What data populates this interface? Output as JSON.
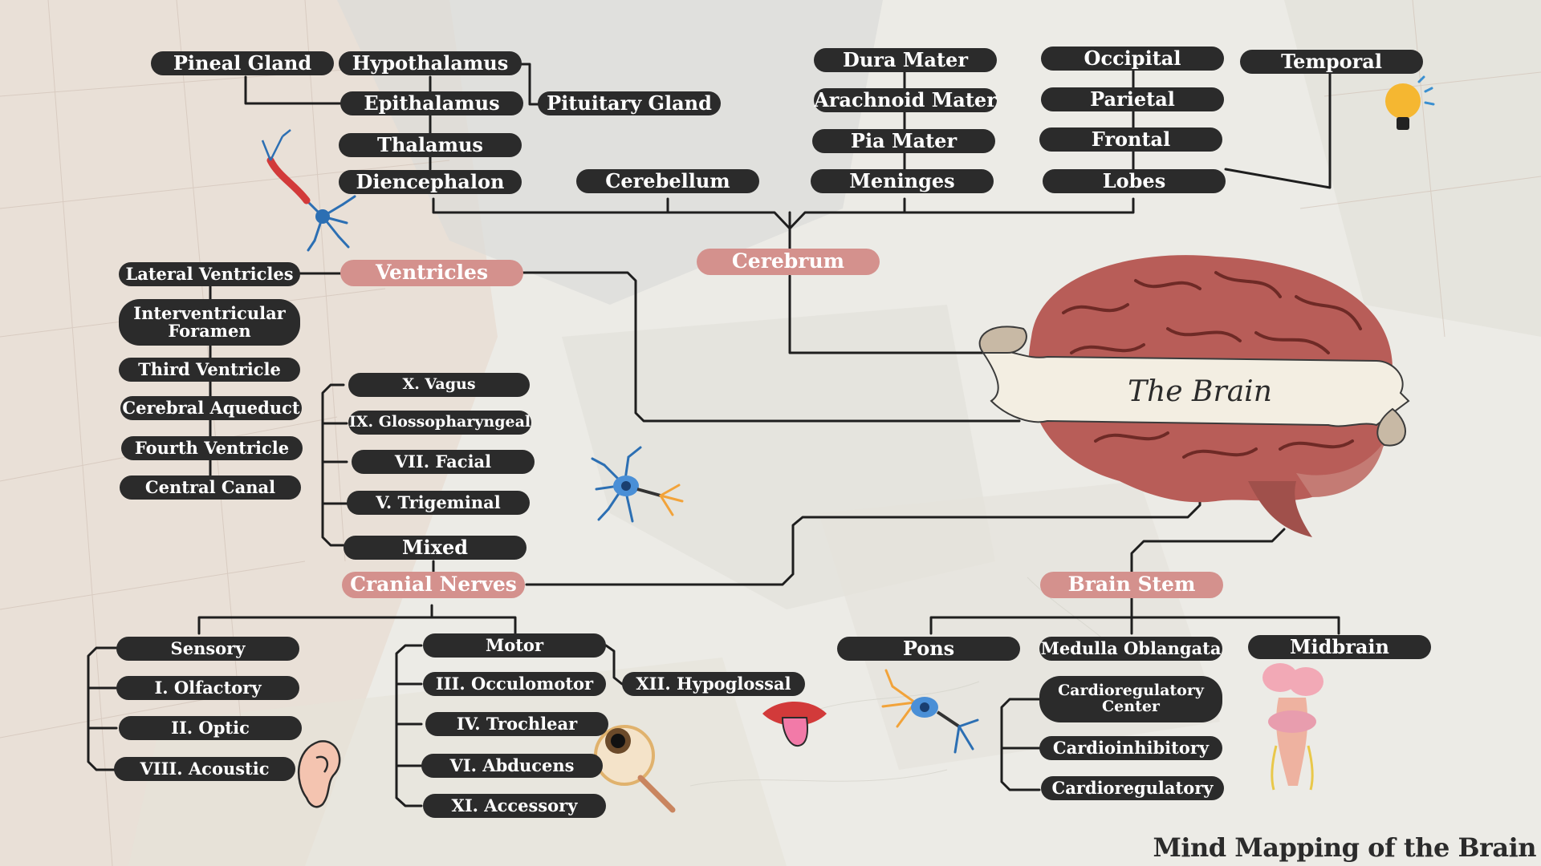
{
  "title": "The Brain",
  "footer": "Mind Mapping of the Brain",
  "colors": {
    "node": "#2b2b2b",
    "hub": "#d4918d",
    "text": "#ffffff",
    "line": "#1e1e1e"
  },
  "nodes": {
    "cerebrum": "Cerebrum",
    "ventricles": "Ventricles",
    "cranial_nerves": "Cranial Nerves",
    "brain_stem": "Brain Stem",
    "pineal_gland": "Pineal Gland",
    "hypothalamus": "Hypothalamus",
    "epithalamus": "Epithalamus",
    "pituitary_gland": "Pituitary Gland",
    "thalamus": "Thalamus",
    "diencephalon": "Diencephalon",
    "cerebellum": "Cerebellum",
    "dura_mater": "Dura Mater",
    "arachnoid_mater": "Arachnoid Mater",
    "pia_mater": "Pia Mater",
    "meninges": "Meninges",
    "occipital": "Occipital",
    "parietal": "Parietal",
    "frontal": "Frontal",
    "lobes": "Lobes",
    "temporal": "Temporal",
    "lateral_ventricles": "Lateral Ventricles",
    "interventricular_foramen": "Interventricular Foramen",
    "third_ventricle": "Third Ventricle",
    "cerebral_aqueduct": "Cerebral Aqueduct",
    "fourth_ventricle": "Fourth Ventricle",
    "central_canal": "Central Canal",
    "vagus": "X. Vagus",
    "glossopharyngeal": "IX. Glossopharyngeal",
    "facial": "VII. Facial",
    "trigeminal": "V. Trigeminal",
    "mixed": "Mixed",
    "sensory": "Sensory",
    "olfactory": "I. Olfactory",
    "optic": "II. Optic",
    "acoustic": "VIII. Acoustic",
    "motor": "Motor",
    "occulomotor": "III. Occulomotor",
    "trochlear": "IV. Trochlear",
    "abducens": "VI. Abducens",
    "accessory": "XI. Accessory",
    "hypoglossal": "XII. Hypoglossal",
    "pons": "Pons",
    "medulla": "Medulla Oblangata",
    "midbrain": "Midbrain",
    "cardioregulatory_center": "Cardioregulatory Center",
    "cardioinhibitory": "Cardioinhibitory",
    "cardioregulatory": "Cardioregulatory"
  },
  "icons": [
    "neuron-icon",
    "brain-illustration",
    "lightbulb-icon",
    "ear-icon",
    "eyeball-icon",
    "mouth-icon",
    "brainstem-illustration"
  ]
}
